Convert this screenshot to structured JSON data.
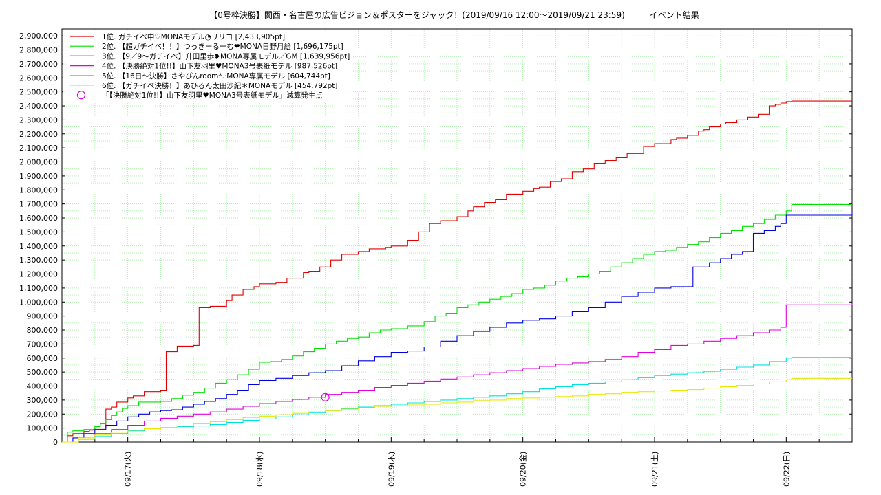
{
  "chart_data": {
    "type": "line",
    "title": "【0号枠決勝】関西・名古屋の広告ビジョン＆ポスターをジャック！(2019/09/16 12:00〜2019/09/21 23:59)　　　イベント結果",
    "xlabel": "",
    "ylabel": "",
    "x_unit": "hours since 2019/09/16 00:00",
    "xlim": [
      12,
      156
    ],
    "ylim": [
      0,
      2950000
    ],
    "y_tick_step": 100000,
    "y_ticks": [
      "0",
      "100,000",
      "200,000",
      "300,000",
      "400,000",
      "500,000",
      "600,000",
      "700,000",
      "800,000",
      "900,000",
      "1,000,000",
      "1,100,000",
      "1,200,000",
      "1,300,000",
      "1,400,000",
      "1,500,000",
      "1,600,000",
      "1,700,000",
      "1,800,000",
      "1,900,000",
      "2,000,000",
      "2,100,000",
      "2,200,000",
      "2,300,000",
      "2,400,000",
      "2,500,000",
      "2,600,000",
      "2,700,000",
      "2,800,000",
      "2,900,000"
    ],
    "x_ticks": [
      {
        "x": 24,
        "label": "09/17(火)"
      },
      {
        "x": 48,
        "label": "09/18(水)"
      },
      {
        "x": 72,
        "label": "09/19(木)"
      },
      {
        "x": 96,
        "label": "09/20(金)"
      },
      {
        "x": 120,
        "label": "09/21(土)"
      },
      {
        "x": 144,
        "label": "09/22(日)"
      }
    ],
    "grid": true,
    "legend_position": "top-left",
    "series": [
      {
        "name": "1位. ガチイベ中♡MONAモデル◔リリコ [2,433,905pt]",
        "color": "#e00000",
        "x": [
          12,
          13,
          14,
          16,
          17,
          18,
          20,
          21,
          22,
          24,
          25,
          27,
          30,
          31,
          33,
          36,
          37,
          39,
          42,
          43,
          45,
          47,
          48,
          51,
          53,
          56,
          57,
          59,
          61,
          63,
          66,
          68,
          71,
          72,
          75,
          77,
          79,
          81,
          84,
          86,
          87,
          89,
          91,
          93,
          96,
          98,
          99,
          101,
          103,
          105,
          107,
          109,
          111,
          113,
          115,
          118,
          120,
          123,
          124,
          126,
          128,
          129,
          130,
          132,
          133,
          135,
          137,
          139,
          141,
          142,
          143,
          144,
          145,
          156
        ],
        "y": [
          0,
          45000,
          60000,
          75000,
          85000,
          100000,
          235000,
          250000,
          285000,
          315000,
          330000,
          360000,
          370000,
          645000,
          685000,
          690000,
          960000,
          970000,
          1010000,
          1050000,
          1090000,
          1110000,
          1130000,
          1140000,
          1170000,
          1210000,
          1220000,
          1250000,
          1300000,
          1340000,
          1360000,
          1380000,
          1390000,
          1400000,
          1440000,
          1500000,
          1560000,
          1580000,
          1610000,
          1650000,
          1680000,
          1710000,
          1730000,
          1770000,
          1790000,
          1810000,
          1820000,
          1860000,
          1880000,
          1930000,
          1950000,
          1990000,
          2010000,
          2030000,
          2060000,
          2110000,
          2130000,
          2160000,
          2170000,
          2190000,
          2220000,
          2230000,
          2250000,
          2270000,
          2280000,
          2300000,
          2320000,
          2340000,
          2400000,
          2410000,
          2420000,
          2430000,
          2433905,
          2433905
        ]
      },
      {
        "name": "2位. 【超ガチイベ！！】つっきーるーむ❤MONA日野月絵 [1,696,175pt]",
        "color": "#00e000",
        "x": [
          12,
          13,
          14,
          16,
          18,
          19,
          20,
          21,
          22,
          23,
          24,
          26,
          30,
          32,
          34,
          36,
          38,
          40,
          42,
          44,
          46,
          48,
          50,
          52,
          54,
          56,
          58,
          60,
          62,
          64,
          66,
          68,
          70,
          72,
          75,
          78,
          80,
          82,
          84,
          86,
          88,
          90,
          92,
          94,
          96,
          98,
          100,
          102,
          104,
          106,
          108,
          110,
          112,
          114,
          116,
          118,
          120,
          122,
          124,
          126,
          128,
          130,
          132,
          134,
          136,
          138,
          140,
          142,
          144,
          145,
          156
        ],
        "y": [
          0,
          70000,
          80000,
          90000,
          110000,
          130000,
          160000,
          190000,
          215000,
          240000,
          260000,
          285000,
          290000,
          310000,
          335000,
          355000,
          385000,
          420000,
          445000,
          480000,
          520000,
          570000,
          575000,
          590000,
          615000,
          645000,
          670000,
          700000,
          720000,
          740000,
          750000,
          780000,
          800000,
          810000,
          830000,
          860000,
          900000,
          920000,
          960000,
          980000,
          1000000,
          1020000,
          1040000,
          1060000,
          1090000,
          1100000,
          1120000,
          1150000,
          1170000,
          1180000,
          1200000,
          1220000,
          1250000,
          1280000,
          1310000,
          1340000,
          1360000,
          1370000,
          1390000,
          1410000,
          1430000,
          1460000,
          1490000,
          1510000,
          1540000,
          1560000,
          1590000,
          1620000,
          1650000,
          1696175,
          1696175
        ]
      },
      {
        "name": "3位. 【9／9〜ガチイベ】升田里歩❥MONA専属モデル／GM [1,639,956pt]",
        "color": "#0000e0",
        "x": [
          12,
          14,
          16,
          18,
          20,
          22,
          24,
          26,
          28,
          30,
          32,
          34,
          36,
          38,
          40,
          42,
          44,
          46,
          48,
          51,
          54,
          57,
          60,
          63,
          66,
          69,
          72,
          75,
          78,
          81,
          84,
          87,
          90,
          93,
          96,
          99,
          102,
          105,
          108,
          111,
          114,
          117,
          120,
          123,
          126,
          127,
          128,
          130,
          132,
          134,
          136,
          138,
          140,
          142,
          143,
          144,
          156
        ],
        "y": [
          0,
          30000,
          60000,
          90000,
          120000,
          150000,
          180000,
          200000,
          215000,
          225000,
          230000,
          250000,
          270000,
          290000,
          310000,
          340000,
          370000,
          410000,
          440000,
          455000,
          475000,
          495000,
          510000,
          545000,
          580000,
          610000,
          640000,
          650000,
          680000,
          720000,
          760000,
          790000,
          820000,
          850000,
          870000,
          880000,
          900000,
          930000,
          960000,
          1000000,
          1040000,
          1070000,
          1100000,
          1110000,
          1110000,
          1250000,
          1250000,
          1280000,
          1310000,
          1340000,
          1360000,
          1490000,
          1510000,
          1540000,
          1560000,
          1620000,
          1639956
        ]
      },
      {
        "name": "4位. 【決勝絶対1位!!】山下友羽里♥MONA3号表紙モデル [987,526pt]",
        "color": "#e000e0",
        "x": [
          12,
          15,
          18,
          21,
          24,
          27,
          30,
          33,
          36,
          39,
          42,
          45,
          48,
          51,
          54,
          57,
          60,
          63,
          66,
          69,
          72,
          75,
          78,
          81,
          84,
          87,
          90,
          93,
          96,
          99,
          102,
          105,
          108,
          111,
          114,
          117,
          120,
          123,
          126,
          129,
          132,
          135,
          138,
          141,
          143,
          144,
          156
        ],
        "y": [
          0,
          30000,
          60000,
          90000,
          120000,
          150000,
          170000,
          185000,
          200000,
          215000,
          235000,
          255000,
          275000,
          290000,
          305000,
          320000,
          340000,
          355000,
          370000,
          390000,
          405000,
          420000,
          435000,
          450000,
          465000,
          480000,
          495000,
          510000,
          525000,
          540000,
          555000,
          565000,
          575000,
          590000,
          610000,
          640000,
          660000,
          690000,
          700000,
          720000,
          740000,
          760000,
          780000,
          800000,
          820000,
          980000,
          987526
        ]
      },
      {
        "name": "5位. 【16日〜決勝】さやぴんroom*.·MONA専属モデル [604,744pt]",
        "color": "#00e0e0",
        "x": [
          12,
          15,
          18,
          21,
          24,
          27,
          30,
          33,
          36,
          39,
          42,
          45,
          48,
          51,
          54,
          57,
          60,
          63,
          66,
          69,
          72,
          75,
          78,
          81,
          84,
          87,
          90,
          93,
          96,
          99,
          102,
          105,
          108,
          111,
          114,
          117,
          120,
          123,
          126,
          129,
          132,
          135,
          138,
          141,
          144,
          145,
          156
        ],
        "y": [
          0,
          20000,
          40000,
          60000,
          80000,
          95000,
          105000,
          110000,
          115000,
          125000,
          140000,
          155000,
          165000,
          180000,
          195000,
          210000,
          225000,
          240000,
          250000,
          260000,
          270000,
          280000,
          290000,
          300000,
          310000,
          320000,
          330000,
          345000,
          360000,
          380000,
          395000,
          410000,
          420000,
          430000,
          445000,
          460000,
          475000,
          485000,
          495000,
          505000,
          520000,
          535000,
          550000,
          575000,
          600000,
          604744,
          604744
        ]
      },
      {
        "name": "6位. 【ガチイベ決勝！】あひるん太田沙紀＊MONAモデル [454,792pt]",
        "color": "#e8e800",
        "x": [
          12,
          15,
          18,
          21,
          24,
          27,
          30,
          33,
          36,
          39,
          42,
          45,
          48,
          51,
          54,
          57,
          60,
          63,
          66,
          69,
          72,
          75,
          78,
          81,
          84,
          87,
          90,
          93,
          96,
          99,
          102,
          105,
          108,
          111,
          114,
          117,
          120,
          123,
          126,
          129,
          132,
          135,
          138,
          141,
          144,
          145,
          156
        ],
        "y": [
          0,
          30000,
          50000,
          70000,
          85000,
          95000,
          105000,
          115000,
          130000,
          145000,
          160000,
          175000,
          185000,
          195000,
          205000,
          215000,
          225000,
          235000,
          245000,
          255000,
          260000,
          265000,
          270000,
          280000,
          285000,
          295000,
          300000,
          310000,
          315000,
          320000,
          325000,
          330000,
          340000,
          345000,
          355000,
          360000,
          365000,
          370000,
          375000,
          385000,
          395000,
          405000,
          415000,
          430000,
          445000,
          454792,
          454792
        ]
      }
    ],
    "annotation": {
      "label": "「【決勝絶対1位!!】山下友羽里♥MONA3号表紙モデル」減算発生点",
      "color": "#e000e0",
      "x": 60,
      "y": 320000
    }
  }
}
